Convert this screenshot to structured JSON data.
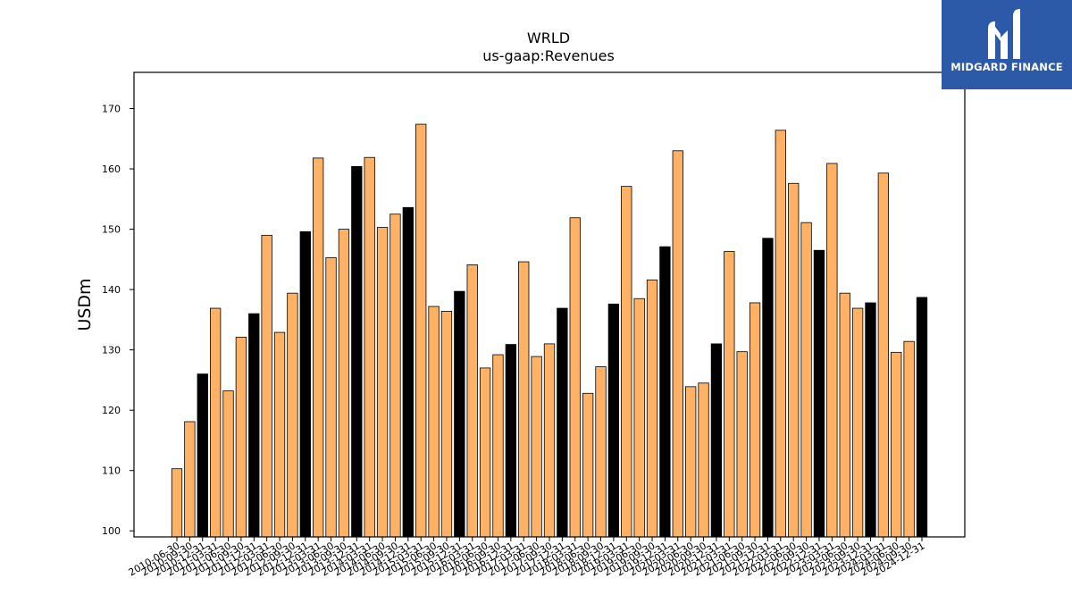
{
  "logo": {
    "text": "MIDGARD FINANCE"
  },
  "colors": {
    "annual": "#000000",
    "quarterly": "#ffb266",
    "logo_bg": "#2d5aa8"
  },
  "chart_data": {
    "type": "bar",
    "title": "WRLD",
    "subtitle": "us-gaap:Revenues",
    "ylabel": "USDm",
    "xlabel": "",
    "ylim": [
      99,
      176
    ],
    "yticks": [
      100,
      110,
      120,
      130,
      140,
      150,
      160,
      170
    ],
    "grid": false,
    "categories": [
      "2010-06-30",
      "2010-09-30",
      "2010-12-31",
      "2011-03-31",
      "2011-06-30",
      "2011-09-30",
      "2011-12-31",
      "2012-03-31",
      "2012-06-30",
      "2012-09-30",
      "2012-12-31",
      "2013-03-31",
      "2013-06-30",
      "2013-09-30",
      "2013-12-31",
      "2014-03-31",
      "2014-06-30",
      "2014-09-30",
      "2014-12-31",
      "2015-03-31",
      "2015-06-30",
      "2015-09-30",
      "2015-12-31",
      "2016-03-31",
      "2016-06-30",
      "2016-09-30",
      "2016-12-31",
      "2017-03-31",
      "2017-06-30",
      "2017-09-30",
      "2017-12-31",
      "2018-03-31",
      "2018-06-30",
      "2018-09-30",
      "2018-12-31",
      "2019-03-31",
      "2019-06-30",
      "2019-09-30",
      "2019-12-31",
      "2020-03-31",
      "2020-06-30",
      "2020-09-30",
      "2020-12-31",
      "2021-03-31",
      "2021-06-30",
      "2021-09-30",
      "2021-12-31",
      "2022-03-31",
      "2022-06-30",
      "2022-09-30",
      "2022-12-31",
      "2023-03-31",
      "2023-06-30",
      "2023-09-30",
      "2023-12-31",
      "2024-03-31",
      "2024-06-30",
      "2024-09-30",
      "2024-12-31"
    ],
    "values": [
      110.3,
      118.1,
      126.0,
      136.9,
      123.2,
      132.1,
      136.0,
      149.0,
      132.9,
      139.4,
      149.6,
      161.8,
      145.3,
      150.0,
      160.4,
      161.9,
      150.3,
      152.5,
      153.6,
      167.4,
      137.2,
      136.4,
      139.7,
      144.1,
      127.0,
      129.2,
      130.9,
      144.6,
      128.9,
      131.0,
      136.9,
      151.9,
      122.8,
      127.2,
      137.6,
      157.1,
      138.5,
      141.6,
      147.1,
      163.0,
      123.9,
      124.5,
      131.0,
      146.3,
      129.7,
      137.8,
      148.5,
      166.4,
      157.6,
      151.1,
      146.5,
      160.9,
      139.4,
      136.9,
      137.8,
      159.3,
      129.6,
      131.4,
      138.7
    ],
    "annual_flags": [
      false,
      false,
      true,
      false,
      false,
      false,
      true,
      false,
      false,
      false,
      true,
      false,
      false,
      false,
      true,
      false,
      false,
      false,
      true,
      false,
      false,
      false,
      true,
      false,
      false,
      false,
      true,
      false,
      false,
      false,
      true,
      false,
      false,
      false,
      true,
      false,
      false,
      false,
      true,
      false,
      false,
      false,
      true,
      false,
      false,
      false,
      true,
      false,
      false,
      false,
      true,
      false,
      false,
      false,
      true,
      false,
      false,
      false,
      true
    ]
  }
}
